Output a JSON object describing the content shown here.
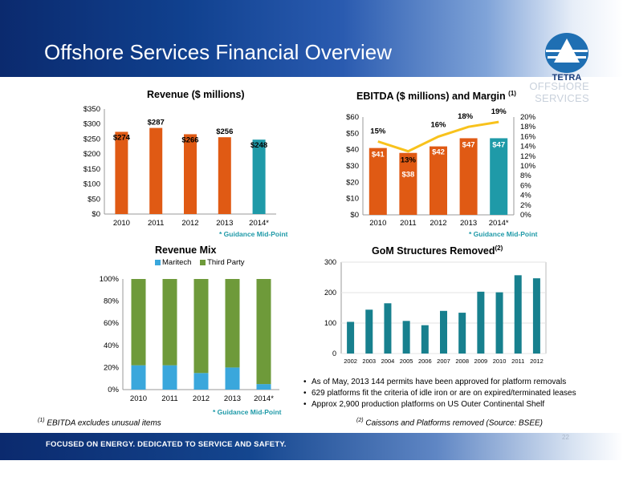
{
  "slide": {
    "title": "Offshore Services Financial Overview",
    "section": "OFFSHORE SERVICES",
    "logo_text": "TETRA",
    "tagline": "FOCUSED ON ENERGY. DEDICATED TO SERVICE AND SAFETY.",
    "page_number": "22",
    "footnote1_mark": "(1)",
    "footnote1": " EBITDA excludes  unusual items",
    "footnote2_mark": "(2)",
    "footnote2": " Caissons and Platforms removed (Source: BSEE)",
    "bullets": [
      "As of May, 2013 144 permits have been approved for platform removals",
      "629 platforms fit the criteria of idle iron or are on expired/terminated leases",
      "Approx 2,900 production platforms on US Outer Continental Shelf"
    ],
    "colors": {
      "orange": "#e05a14",
      "teal": "#1f9aa8",
      "green": "#6e9a3a",
      "blue": "#3aa7dc",
      "yellow": "#f8c21c",
      "dark_teal": "#17808e"
    }
  },
  "chart_data": [
    {
      "type": "bar",
      "title": "Revenue ($ millions)",
      "categories": [
        "2010",
        "2011",
        "2012",
        "2013",
        "2014*"
      ],
      "values": [
        274,
        287,
        266,
        256,
        248
      ],
      "data_labels": [
        "$274",
        "$287",
        "$266",
        "$256",
        "$248"
      ],
      "y_ticks": [
        "$0",
        "$50",
        "$100",
        "$150",
        "$200",
        "$250",
        "$300",
        "$350"
      ],
      "ylim": [
        0,
        350
      ],
      "note": "* Guidance Mid-Point",
      "bar_colors": [
        "#e05a14",
        "#e05a14",
        "#e05a14",
        "#e05a14",
        "#1f9aa8"
      ]
    },
    {
      "type": "bar",
      "title": "EBITDA ($ millions) and Margin",
      "title_sup": "(1)",
      "categories": [
        "2010",
        "2011",
        "2012",
        "2013",
        "2014*"
      ],
      "values": [
        41,
        38,
        42,
        47,
        47
      ],
      "data_labels": [
        "$41",
        "$38",
        "$42",
        "$47",
        "$47"
      ],
      "margin_values": [
        15,
        13,
        16,
        18,
        19
      ],
      "margin_labels": [
        "15%",
        "13%",
        "16%",
        "18%",
        "19%"
      ],
      "y_ticks": [
        "$0",
        "$10",
        "$20",
        "$30",
        "$40",
        "$50",
        "$60"
      ],
      "ylim": [
        0,
        60
      ],
      "y2_ticks": [
        "0%",
        "2%",
        "4%",
        "6%",
        "8%",
        "10%",
        "12%",
        "14%",
        "16%",
        "18%",
        "20%"
      ],
      "y2lim": [
        0,
        20
      ],
      "note": "* Guidance Mid-Point",
      "bar_colors": [
        "#e05a14",
        "#e05a14",
        "#e05a14",
        "#e05a14",
        "#1f9aa8"
      ],
      "line_color": "#f8c21c"
    },
    {
      "type": "bar",
      "stacked": true,
      "title": "Revenue Mix",
      "categories": [
        "2010",
        "2011",
        "2012",
        "2013",
        "2014*"
      ],
      "series": [
        {
          "name": "Maritech",
          "values": [
            22,
            22,
            15,
            20,
            5
          ],
          "color": "#3aa7dc"
        },
        {
          "name": "Third Party",
          "values": [
            78,
            78,
            85,
            80,
            95
          ],
          "color": "#6e9a3a"
        }
      ],
      "y_ticks": [
        "0%",
        "20%",
        "40%",
        "60%",
        "80%",
        "100%"
      ],
      "ylim": [
        0,
        100
      ],
      "legend": "top",
      "note": "* Guidance Mid-Point"
    },
    {
      "type": "bar",
      "title": "GoM Structures Removed",
      "title_sup": "(2)",
      "categories": [
        "2002",
        "2003",
        "2004",
        "2005",
        "2006",
        "2007",
        "2008",
        "2009",
        "2010",
        "2011",
        "2012"
      ],
      "values": [
        104,
        144,
        165,
        107,
        93,
        140,
        134,
        203,
        201,
        257,
        247
      ],
      "y_ticks": [
        "0",
        "100",
        "200",
        "300"
      ],
      "ylim": [
        0,
        300
      ],
      "bar_color": "#17808e"
    }
  ]
}
